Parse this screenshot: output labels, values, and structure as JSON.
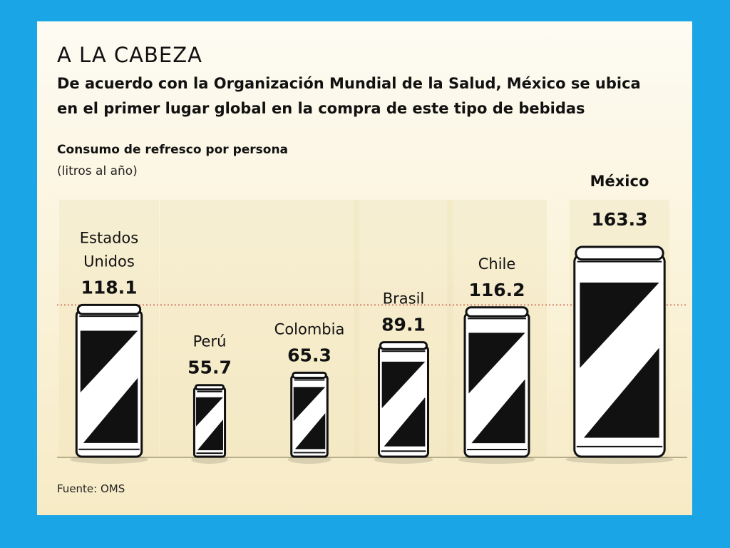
{
  "header": {
    "title": "A LA CABEZA",
    "subtitle_line1": "De acuerdo con la Organización Mundial de la Salud, México se ubica",
    "subtitle_line2": "en el primer lugar global en la compra de este tipo de bebidas"
  },
  "chart_unit_line1": "Consumo de refresco por persona",
  "chart_unit_line2": "(litros al año)",
  "source": "Fuente: OMS",
  "colors": {
    "background": "#1aa6e6",
    "highlight": "#d8203c",
    "can_stripe": "#111111",
    "reference_line": "#c0392b"
  },
  "chart_data": {
    "type": "bar",
    "title": "A LA CABEZA",
    "ylabel": "Consumo de refresco por persona (litros al año)",
    "categories": [
      "Estados Unidos",
      "Perú",
      "Colombia",
      "Brasil",
      "Chile",
      "México"
    ],
    "category_label_lines": [
      [
        "Estados",
        "Unidos"
      ],
      [
        "Perú"
      ],
      [
        "Colombia"
      ],
      [
        "Brasil"
      ],
      [
        "Chile"
      ],
      [
        "México"
      ]
    ],
    "values": [
      118.1,
      55.7,
      65.3,
      89.1,
      116.2,
      163.3
    ],
    "value_labels": [
      "118.1",
      "55.7",
      "65.3",
      "89.1",
      "116.2",
      "163.3"
    ],
    "highlight_category": "México",
    "reference_line_value": 118.1,
    "ylim": [
      0,
      163.3
    ],
    "grid": false
  }
}
